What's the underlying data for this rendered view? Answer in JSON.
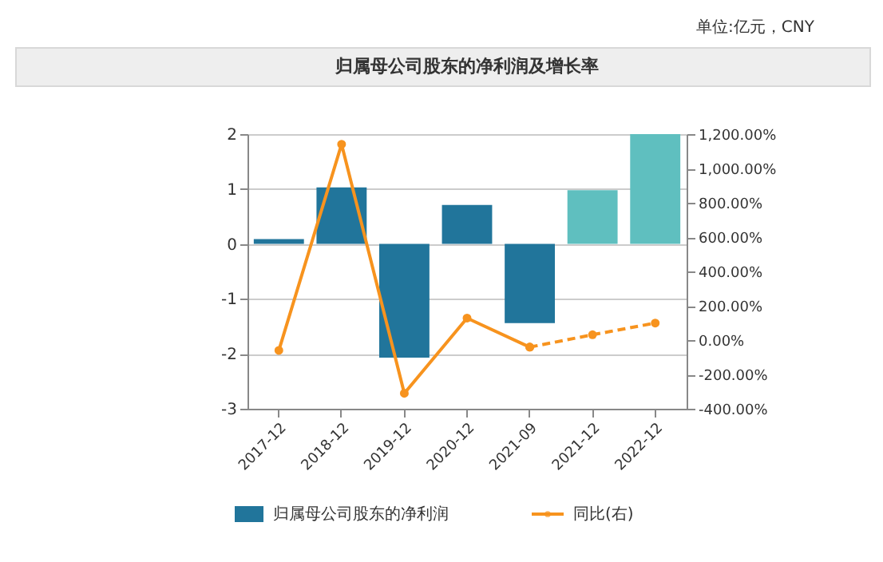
{
  "chart_data": {
    "type": "bar",
    "title": "归属母公司股东的净利润及增长率",
    "annotations": [
      "单位:亿元，CNY"
    ],
    "categories": [
      "2017-12",
      "2018-12",
      "2019-12",
      "2020-12",
      "2021-09",
      "2021-12",
      "2022-12"
    ],
    "series": [
      {
        "name": "归属母公司股东的净利润",
        "colors": [
          "#21759b",
          "#21759b",
          "#21759b",
          "#21759b",
          "#21759b",
          "#5fbfbf",
          "#5fbfbf"
        ],
        "color": "#21759b",
        "values": [
          0.09,
          1.03,
          -2.07,
          0.71,
          -1.44,
          0.98,
          2.0
        ]
      },
      {
        "name": "同比(右)",
        "type": "line",
        "axis": "y2",
        "color": "#f7931e",
        "line_style": "solid",
        "values": [
          -60,
          1141,
          -310,
          128,
          -41,
          null,
          null
        ]
      },
      {
        "type": "line",
        "axis": "y2",
        "color": "#f7931e",
        "line_style": "dashed",
        "values": [
          null,
          null,
          null,
          null,
          -41,
          31,
          99
        ]
      }
    ],
    "ylim": [
      -3,
      2
    ],
    "yticks": [
      -3,
      -2,
      -1,
      0,
      1,
      2
    ],
    "y2lim": [
      -400,
      1200
    ],
    "y2ticks": [
      {
        "value": -400,
        "label": "-400.00%"
      },
      {
        "value": -200,
        "label": "-200.00%"
      },
      {
        "value": 0,
        "label": "0.00%"
      },
      {
        "value": 200,
        "label": "200.00%"
      },
      {
        "value": 400,
        "label": "400.00%"
      },
      {
        "value": 600,
        "label": "600.00%"
      },
      {
        "value": 800,
        "label": "800.00%"
      },
      {
        "value": 1000,
        "label": "1,000.00%"
      },
      {
        "value": 1200,
        "label": "1,200.00%"
      }
    ],
    "grid": "y",
    "legend": "bottom",
    "marker": "circle"
  }
}
